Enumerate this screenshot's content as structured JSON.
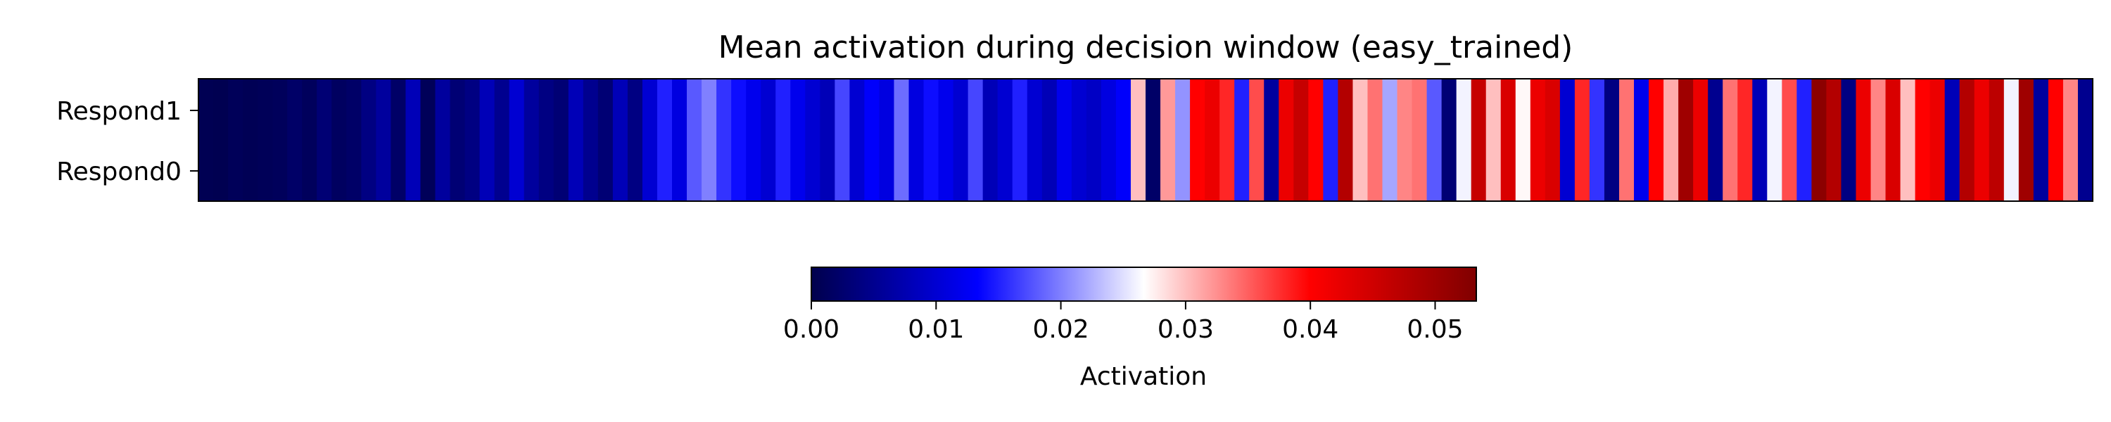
{
  "chart_data": {
    "type": "heatmap",
    "title": "Mean activation during decision window (easy_trained)",
    "rows": [
      "Respond1",
      "Respond0"
    ],
    "columns": 128,
    "values": [
      0.0005,
      0.0004,
      0.001,
      0.0007,
      0.0009,
      0.0011,
      0.002,
      0.0012,
      0.003,
      0.0015,
      0.002,
      0.004,
      0.006,
      0.002,
      0.008,
      0.001,
      0.006,
      0.003,
      0.004,
      0.008,
      0.005,
      0.01,
      0.006,
      0.004,
      0.003,
      0.008,
      0.005,
      0.003,
      0.008,
      0.004,
      0.01,
      0.015,
      0.011,
      0.018,
      0.02,
      0.016,
      0.014,
      0.012,
      0.01,
      0.015,
      0.012,
      0.01,
      0.008,
      0.017,
      0.01,
      0.013,
      0.011,
      0.019,
      0.011,
      0.014,
      0.012,
      0.01,
      0.017,
      0.008,
      0.01,
      0.015,
      0.01,
      0.008,
      0.012,
      0.01,
      0.009,
      0.011,
      0.013,
      0.03,
      0.002,
      0.032,
      0.021,
      0.04,
      0.042,
      0.038,
      0.015,
      0.036,
      0.006,
      0.042,
      0.046,
      0.04,
      0.015,
      0.048,
      0.03,
      0.034,
      0.022,
      0.033,
      0.034,
      0.018,
      0.003,
      0.026,
      0.046,
      0.03,
      0.044,
      0.027,
      0.042,
      0.044,
      0.01,
      0.038,
      0.016,
      0.004,
      0.034,
      0.012,
      0.04,
      0.031,
      0.05,
      0.042,
      0.005,
      0.034,
      0.038,
      0.008,
      0.026,
      0.036,
      0.015,
      0.052,
      0.048,
      0.004,
      0.042,
      0.033,
      0.044,
      0.03,
      0.04,
      0.042,
      0.008,
      0.048,
      0.042,
      0.047,
      0.026,
      0.05,
      0.006,
      0.04,
      0.033,
      0.005
    ],
    "colormap": "seismic",
    "colorbar": {
      "label": "Activation",
      "range": [
        0,
        0.0533
      ],
      "ticks": [
        "0.00",
        "0.01",
        "0.02",
        "0.03",
        "0.04",
        "0.05"
      ],
      "orientation": "horizontal"
    }
  }
}
